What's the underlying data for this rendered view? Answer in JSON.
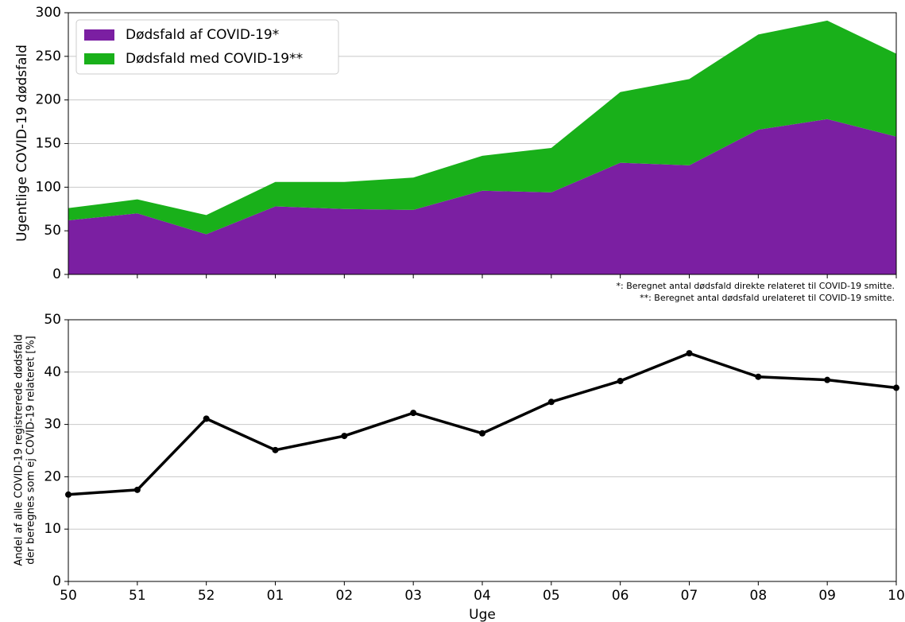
{
  "chart_data": [
    {
      "type": "area",
      "stacked": true,
      "ylabel": "Ugentlige COVID-19 dødsfald",
      "series": [
        {
          "name": "Dødsfald af COVID-19*",
          "color": "#7b1fa2",
          "values": [
            62,
            70,
            46,
            78,
            75,
            74,
            96,
            94,
            128,
            125,
            166,
            178,
            158
          ]
        },
        {
          "name": "Dødsfald med COVID-19**",
          "color": "#19b01a",
          "values": [
            14,
            16,
            22,
            28,
            31,
            37,
            40,
            51,
            81,
            99,
            109,
            113,
            95
          ]
        }
      ],
      "ylim": [
        0,
        300
      ],
      "yticks": [
        0,
        50,
        100,
        150,
        200,
        250,
        300
      ],
      "grid": true,
      "legend": "upper-left",
      "annotations": [
        "*: Beregnet antal dødsfald direkte relateret til COVID-19 smitte.",
        "**: Beregnet antal dødsfald urelateret til COVID-19 smitte."
      ]
    },
    {
      "type": "line",
      "xlabel": "Uge",
      "ylabel": [
        "Andel af alle COVID-19 registrerede dødsfald",
        "der beregnes som ej COVID-19 relateret [%]"
      ],
      "categories": [
        "50",
        "51",
        "52",
        "01",
        "02",
        "03",
        "04",
        "05",
        "06",
        "07",
        "08",
        "09",
        "10"
      ],
      "values": [
        16.6,
        17.5,
        31.1,
        25.1,
        27.8,
        32.2,
        28.3,
        34.3,
        38.3,
        43.6,
        39.1,
        38.5,
        37.0
      ],
      "color": "#000000",
      "ylim": [
        0,
        50
      ],
      "yticks": [
        0,
        10,
        20,
        30,
        40,
        50
      ],
      "grid": true
    }
  ]
}
